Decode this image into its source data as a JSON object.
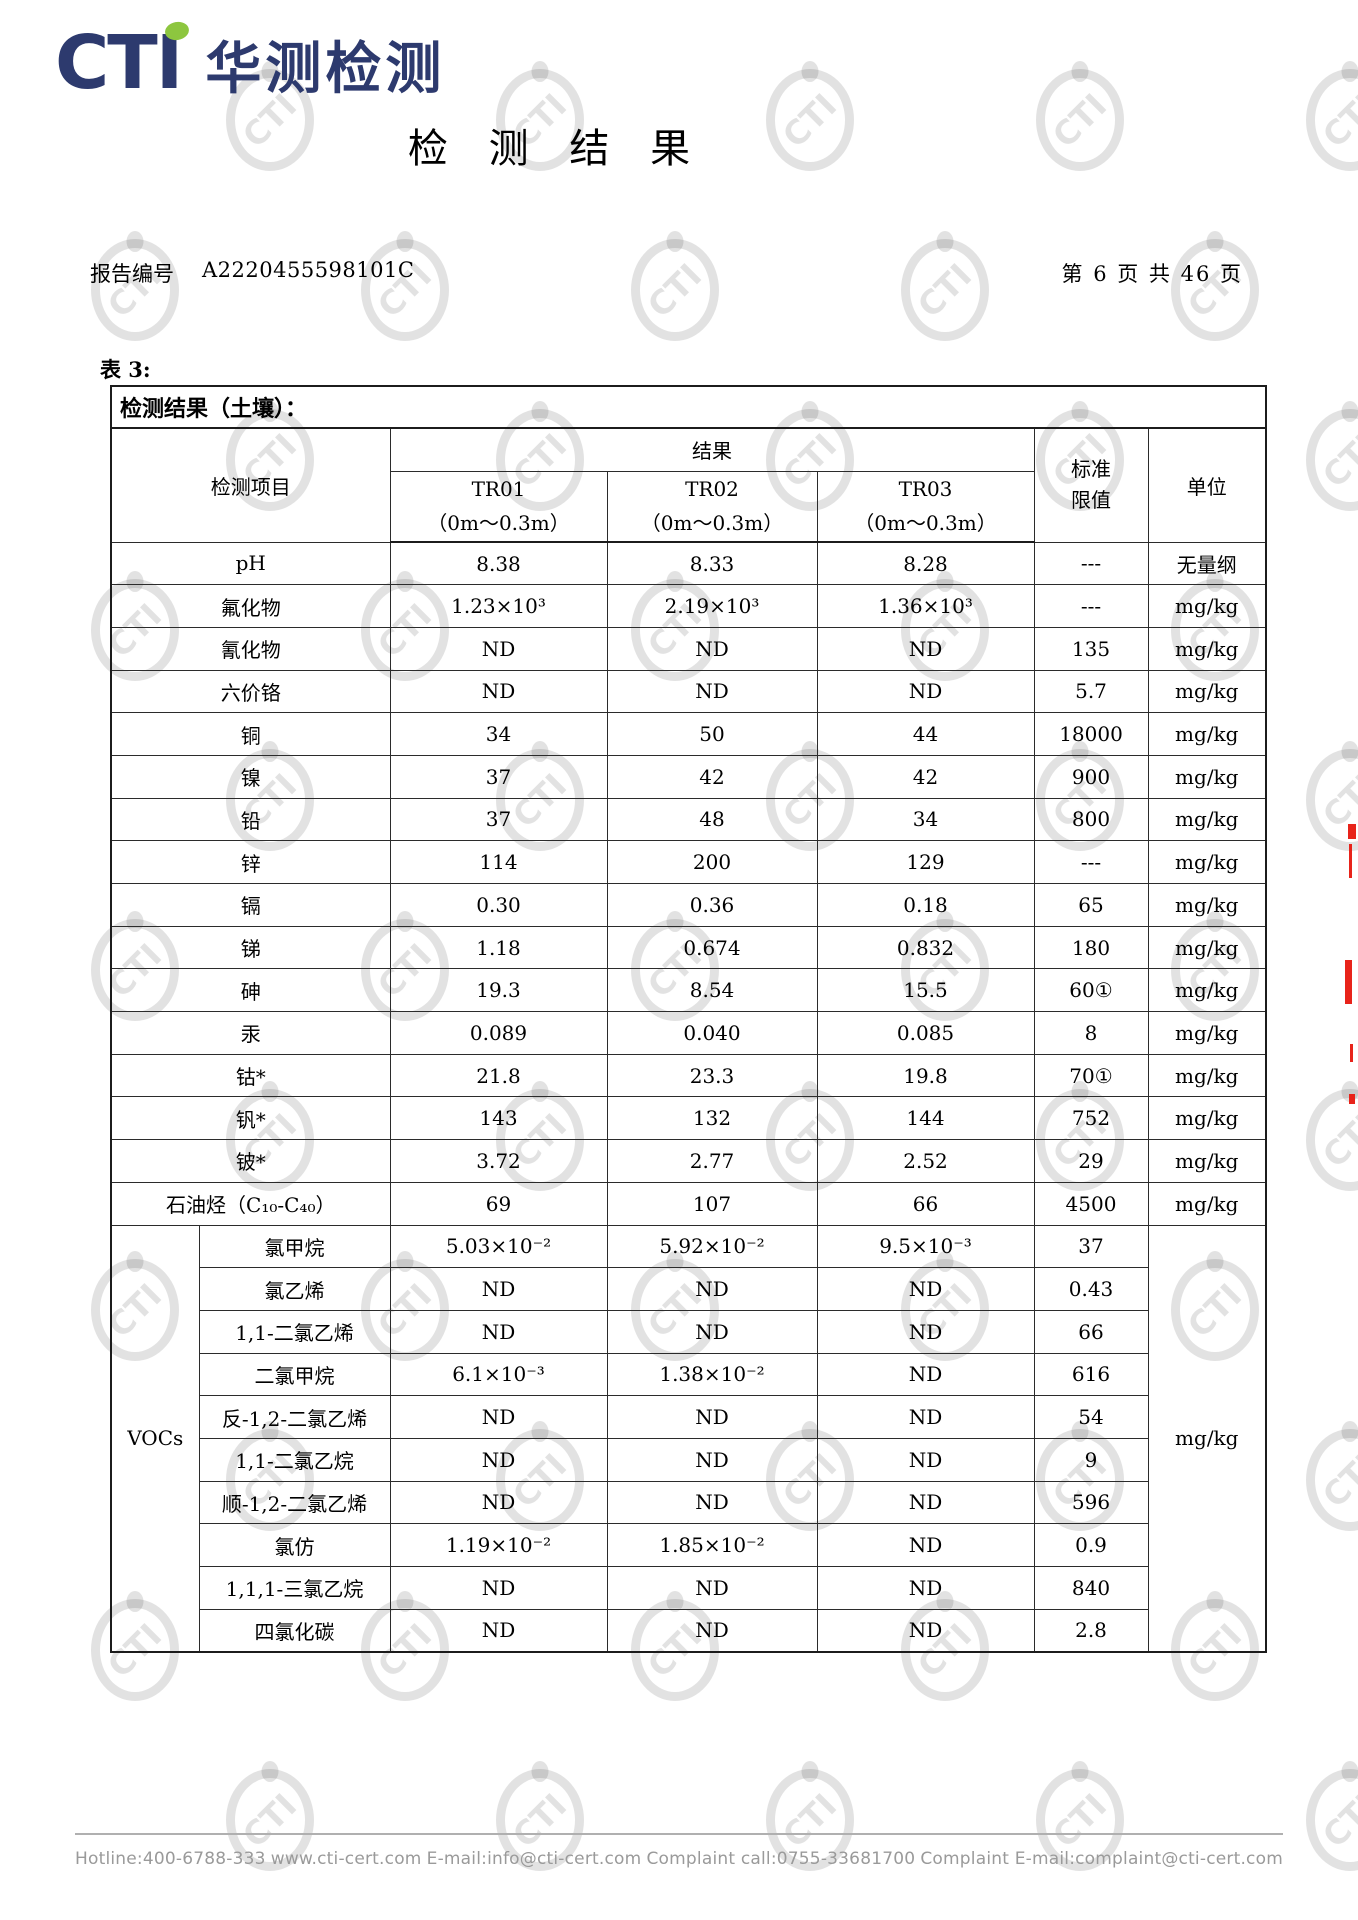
{
  "logo": {
    "text": "CTI",
    "company": "华测检测"
  },
  "watermark": {
    "text": "CTI"
  },
  "title": "检  测  结  果",
  "report_header": {
    "label": "报告编号",
    "number": "A2220455598101C",
    "page_info": "第 6 页 共 46 页"
  },
  "table": {
    "caption": "表 3:",
    "subtitle": "检测结果（土壤）：",
    "columns": {
      "item": "检测项目",
      "result_group": "结果",
      "limit": "标准限值",
      "unit": "单位",
      "samples": [
        {
          "id": "TR01",
          "depth": "（0m～0.3m）"
        },
        {
          "id": "TR02",
          "depth": "（0m～0.3m）"
        },
        {
          "id": "TR03",
          "depth": "（0m～0.3m）"
        }
      ]
    },
    "rows": [
      {
        "name": "pH",
        "tr01": "8.38",
        "tr02": "8.33",
        "tr03": "8.28",
        "limit": "---",
        "unit": "无量纲"
      },
      {
        "name": "氟化物",
        "tr01": "1.23×10³",
        "tr02": "2.19×10³",
        "tr03": "1.36×10³",
        "limit": "---",
        "unit": "mg/kg"
      },
      {
        "name": "氰化物",
        "tr01": "ND",
        "tr02": "ND",
        "tr03": "ND",
        "limit": "135",
        "unit": "mg/kg"
      },
      {
        "name": "六价铬",
        "tr01": "ND",
        "tr02": "ND",
        "tr03": "ND",
        "limit": "5.7",
        "unit": "mg/kg"
      },
      {
        "name": "铜",
        "tr01": "34",
        "tr02": "50",
        "tr03": "44",
        "limit": "18000",
        "unit": "mg/kg"
      },
      {
        "name": "镍",
        "tr01": "37",
        "tr02": "42",
        "tr03": "42",
        "limit": "900",
        "unit": "mg/kg"
      },
      {
        "name": "铅",
        "tr01": "37",
        "tr02": "48",
        "tr03": "34",
        "limit": "800",
        "unit": "mg/kg"
      },
      {
        "name": "锌",
        "tr01": "114",
        "tr02": "200",
        "tr03": "129",
        "limit": "---",
        "unit": "mg/kg"
      },
      {
        "name": "镉",
        "tr01": "0.30",
        "tr02": "0.36",
        "tr03": "0.18",
        "limit": "65",
        "unit": "mg/kg"
      },
      {
        "name": "锑",
        "tr01": "1.18",
        "tr02": "0.674",
        "tr03": "0.832",
        "limit": "180",
        "unit": "mg/kg"
      },
      {
        "name": "砷",
        "tr01": "19.3",
        "tr02": "8.54",
        "tr03": "15.5",
        "limit": "60①",
        "unit": "mg/kg"
      },
      {
        "name": "汞",
        "tr01": "0.089",
        "tr02": "0.040",
        "tr03": "0.085",
        "limit": "8",
        "unit": "mg/kg"
      },
      {
        "name": "钴*",
        "tr01": "21.8",
        "tr02": "23.3",
        "tr03": "19.8",
        "limit": "70①",
        "unit": "mg/kg"
      },
      {
        "name": "钒*",
        "tr01": "143",
        "tr02": "132",
        "tr03": "144",
        "limit": "752",
        "unit": "mg/kg"
      },
      {
        "name": "铍*",
        "tr01": "3.72",
        "tr02": "2.77",
        "tr03": "2.52",
        "limit": "29",
        "unit": "mg/kg"
      },
      {
        "name": "石油烃（C₁₀-C₄₀）",
        "tr01": "69",
        "tr02": "107",
        "tr03": "66",
        "limit": "4500",
        "unit": "mg/kg"
      }
    ],
    "voc_group": {
      "label": "VOCs",
      "unit": "mg/kg",
      "rows": [
        {
          "name": "氯甲烷",
          "tr01": "5.03×10⁻²",
          "tr02": "5.92×10⁻²",
          "tr03": "9.5×10⁻³",
          "limit": "37"
        },
        {
          "name": "氯乙烯",
          "tr01": "ND",
          "tr02": "ND",
          "tr03": "ND",
          "limit": "0.43"
        },
        {
          "name": "1,1-二氯乙烯",
          "tr01": "ND",
          "tr02": "ND",
          "tr03": "ND",
          "limit": "66"
        },
        {
          "name": "二氯甲烷",
          "tr01": "6.1×10⁻³",
          "tr02": "1.38×10⁻²",
          "tr03": "ND",
          "limit": "616"
        },
        {
          "name": "反-1,2-二氯乙烯",
          "tr01": "ND",
          "tr02": "ND",
          "tr03": "ND",
          "limit": "54"
        },
        {
          "name": "1,1-二氯乙烷",
          "tr01": "ND",
          "tr02": "ND",
          "tr03": "ND",
          "limit": "9"
        },
        {
          "name": "顺-1,2-二氯乙烯",
          "tr01": "ND",
          "tr02": "ND",
          "tr03": "ND",
          "limit": "596"
        },
        {
          "name": "氯仿",
          "tr01": "1.19×10⁻²",
          "tr02": "1.85×10⁻²",
          "tr03": "ND",
          "limit": "0.9"
        },
        {
          "name": "1,1,1-三氯乙烷",
          "tr01": "ND",
          "tr02": "ND",
          "tr03": "ND",
          "limit": "840"
        },
        {
          "name": "四氯化碳",
          "tr01": "ND",
          "tr02": "ND",
          "tr03": "ND",
          "limit": "2.8"
        }
      ]
    }
  },
  "footer": {
    "items": [
      "Hotline:400-6788-333",
      "www.cti-cert.com",
      "E-mail:info@cti-cert.com",
      "Complaint call:0755-33681700",
      "Complaint E-mail:complaint@cti-cert.com"
    ]
  }
}
